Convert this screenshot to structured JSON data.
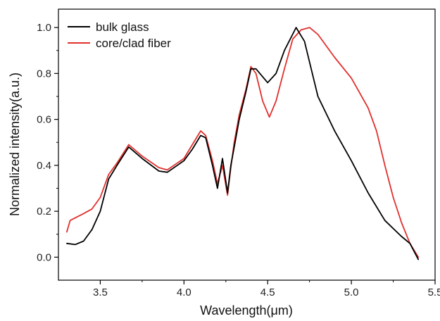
{
  "chart_data": {
    "type": "line",
    "xlabel": "Wavelength(μm)",
    "ylabel": "Normalized intensity(a.u.)",
    "xlim": [
      3.25,
      5.5
    ],
    "ylim": [
      -0.1,
      1.08
    ],
    "xticks": [
      3.5,
      4.0,
      4.5,
      5.0,
      5.5
    ],
    "xtick_labels": [
      "3.5",
      "4.0",
      "4.5",
      "5.0",
      "5.5"
    ],
    "yticks": [
      0.0,
      0.2,
      0.4,
      0.6,
      0.8,
      1.0
    ],
    "ytick_labels": [
      "0.0",
      "0.2",
      "0.4",
      "0.6",
      "0.8",
      "1.0"
    ],
    "grid": false,
    "legend_position": "top-left",
    "series": [
      {
        "name": "bulk glass",
        "color": "#000000",
        "points": [
          [
            3.3,
            0.06
          ],
          [
            3.35,
            0.055
          ],
          [
            3.4,
            0.07
          ],
          [
            3.45,
            0.12
          ],
          [
            3.5,
            0.2
          ],
          [
            3.55,
            0.34
          ],
          [
            3.6,
            0.4
          ],
          [
            3.67,
            0.48
          ],
          [
            3.75,
            0.43
          ],
          [
            3.85,
            0.375
          ],
          [
            3.9,
            0.37
          ],
          [
            4.0,
            0.42
          ],
          [
            4.05,
            0.47
          ],
          [
            4.1,
            0.53
          ],
          [
            4.13,
            0.52
          ],
          [
            4.17,
            0.4
          ],
          [
            4.2,
            0.3
          ],
          [
            4.23,
            0.43
          ],
          [
            4.26,
            0.28
          ],
          [
            4.28,
            0.4
          ],
          [
            4.3,
            0.48
          ],
          [
            4.33,
            0.6
          ],
          [
            4.37,
            0.72
          ],
          [
            4.4,
            0.82
          ],
          [
            4.43,
            0.82
          ],
          [
            4.5,
            0.76
          ],
          [
            4.55,
            0.8
          ],
          [
            4.6,
            0.9
          ],
          [
            4.67,
            1.0
          ],
          [
            4.72,
            0.94
          ],
          [
            4.8,
            0.7
          ],
          [
            4.9,
            0.55
          ],
          [
            5.0,
            0.42
          ],
          [
            5.1,
            0.28
          ],
          [
            5.2,
            0.16
          ],
          [
            5.3,
            0.09
          ],
          [
            5.35,
            0.06
          ],
          [
            5.4,
            -0.01
          ]
        ]
      },
      {
        "name": "core/clad fiber",
        "color": "#e0302d",
        "points": [
          [
            3.3,
            0.11
          ],
          [
            3.32,
            0.16
          ],
          [
            3.4,
            0.19
          ],
          [
            3.45,
            0.21
          ],
          [
            3.5,
            0.26
          ],
          [
            3.55,
            0.36
          ],
          [
            3.6,
            0.41
          ],
          [
            3.67,
            0.49
          ],
          [
            3.75,
            0.44
          ],
          [
            3.85,
            0.39
          ],
          [
            3.9,
            0.38
          ],
          [
            4.0,
            0.43
          ],
          [
            4.05,
            0.49
          ],
          [
            4.1,
            0.55
          ],
          [
            4.13,
            0.53
          ],
          [
            4.17,
            0.42
          ],
          [
            4.2,
            0.32
          ],
          [
            4.23,
            0.4
          ],
          [
            4.26,
            0.27
          ],
          [
            4.28,
            0.39
          ],
          [
            4.3,
            0.5
          ],
          [
            4.33,
            0.62
          ],
          [
            4.37,
            0.73
          ],
          [
            4.4,
            0.83
          ],
          [
            4.43,
            0.8
          ],
          [
            4.47,
            0.68
          ],
          [
            4.51,
            0.61
          ],
          [
            4.55,
            0.68
          ],
          [
            4.6,
            0.82
          ],
          [
            4.65,
            0.95
          ],
          [
            4.7,
            0.99
          ],
          [
            4.75,
            1.0
          ],
          [
            4.8,
            0.97
          ],
          [
            4.9,
            0.87
          ],
          [
            5.0,
            0.78
          ],
          [
            5.1,
            0.65
          ],
          [
            5.15,
            0.55
          ],
          [
            5.2,
            0.4
          ],
          [
            5.25,
            0.26
          ],
          [
            5.3,
            0.15
          ],
          [
            5.35,
            0.06
          ],
          [
            5.4,
            0.0
          ]
        ]
      }
    ]
  }
}
